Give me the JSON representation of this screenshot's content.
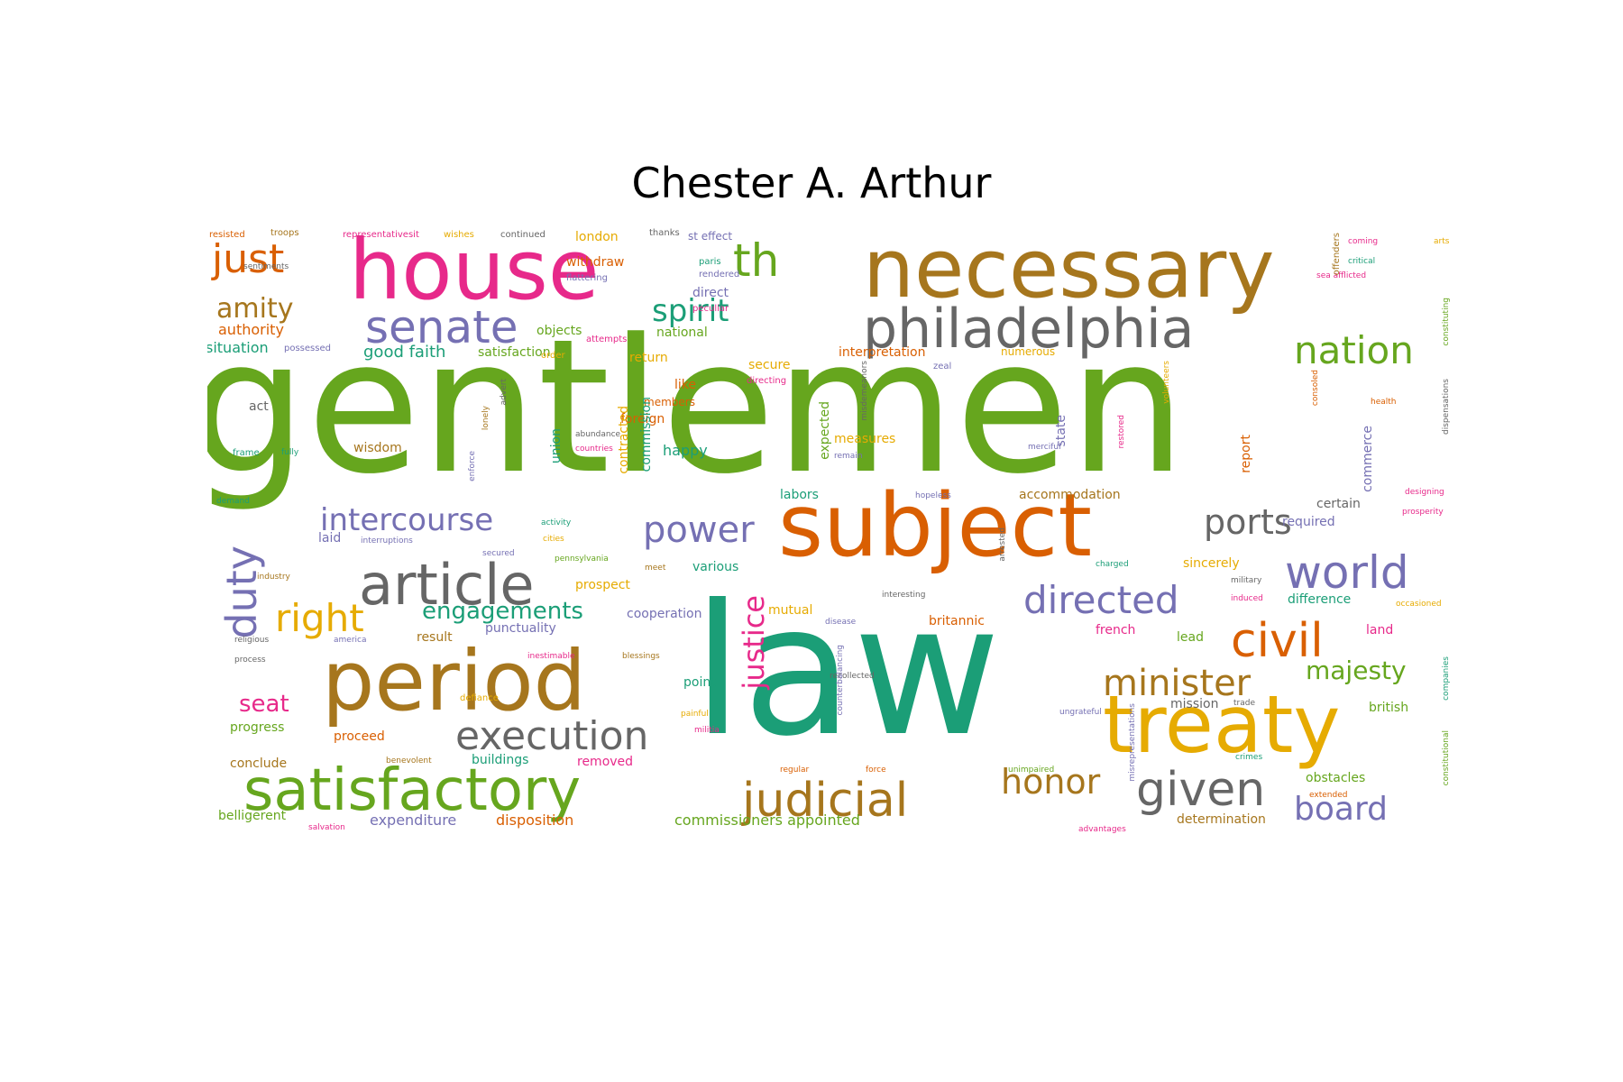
{
  "title": "Chester A. Arthur",
  "words": {
    "gentlemen": {
      "text": "gentlemen",
      "color": "#66a61e"
    },
    "law": {
      "text": "law",
      "color": "#1b9e77"
    },
    "necessary": {
      "text": "necessary",
      "color": "#a6761d"
    },
    "house": {
      "text": "house",
      "color": "#e7298a"
    },
    "subject": {
      "text": "subject",
      "color": "#d95f02"
    },
    "treaty": {
      "text": "treaty",
      "color": "#e6ab02"
    },
    "period": {
      "text": "period",
      "color": "#a6761d"
    },
    "philadelphia": {
      "text": "philadelphia",
      "color": "#666666"
    },
    "satisfactory": {
      "text": "satisfactory",
      "color": "#66a61e"
    },
    "article": {
      "text": "article",
      "color": "#666666"
    },
    "judicial": {
      "text": "judicial",
      "color": "#a6761d"
    },
    "senate": {
      "text": "senate",
      "color": "#7570b3"
    },
    "world": {
      "text": "world",
      "color": "#7570b3"
    },
    "directed": {
      "text": "directed",
      "color": "#7570b3"
    },
    "civil": {
      "text": "civil",
      "color": "#d95f02"
    },
    "given": {
      "text": "given",
      "color": "#666666"
    },
    "execution": {
      "text": "execution",
      "color": "#666666"
    },
    "minister": {
      "text": "minister",
      "color": "#a6761d"
    },
    "nation": {
      "text": "nation",
      "color": "#66a61e"
    },
    "th": {
      "text": "th",
      "color": "#66a61e"
    },
    "just": {
      "text": "just",
      "color": "#d95f02"
    },
    "duty": {
      "text": "duty",
      "color": "#7570b3"
    },
    "honor": {
      "text": "honor",
      "color": "#a6761d"
    },
    "power": {
      "text": "power",
      "color": "#7570b3"
    },
    "ports": {
      "text": "ports",
      "color": "#666666"
    },
    "right": {
      "text": "right",
      "color": "#e6ab02"
    },
    "board": {
      "text": "board",
      "color": "#7570b3"
    },
    "intercourse": {
      "text": "intercourse",
      "color": "#7570b3"
    },
    "justice": {
      "text": "justice",
      "color": "#e7298a"
    },
    "spirit": {
      "text": "spirit",
      "color": "#1b9e77"
    },
    "amity": {
      "text": "amity",
      "color": "#a6761d"
    },
    "majesty": {
      "text": "majesty",
      "color": "#66a61e"
    },
    "engagements": {
      "text": "engagements",
      "color": "#1b9e77"
    },
    "seat": {
      "text": "seat",
      "color": "#e7298a"
    },
    "small": [
      {
        "text": "resisted",
        "color": "#d95f02"
      },
      {
        "text": "troops",
        "color": "#a6761d"
      },
      {
        "text": "representativesit",
        "color": "#e7298a"
      },
      {
        "text": "wishes",
        "color": "#e6ab02"
      },
      {
        "text": "continued",
        "color": "#666666"
      },
      {
        "text": "london",
        "color": "#e6ab02"
      },
      {
        "text": "thanks",
        "color": "#666666"
      },
      {
        "text": "st effect",
        "color": "#7570b3"
      },
      {
        "text": "sentiments",
        "color": "#666666"
      },
      {
        "text": "authority",
        "color": "#d95f02"
      },
      {
        "text": "situation",
        "color": "#1b9e77"
      },
      {
        "text": "possessed",
        "color": "#7570b3"
      },
      {
        "text": "good faith",
        "color": "#1b9e77"
      },
      {
        "text": "satisfaction",
        "color": "#66a61e"
      },
      {
        "text": "objects",
        "color": "#66a61e"
      },
      {
        "text": "attempts",
        "color": "#e7298a"
      },
      {
        "text": "national",
        "color": "#66a61e"
      },
      {
        "text": "withdraw",
        "color": "#d95f02"
      },
      {
        "text": "flattering",
        "color": "#7570b3"
      },
      {
        "text": "direct",
        "color": "#7570b3"
      },
      {
        "text": "peculiar",
        "color": "#e7298a"
      },
      {
        "text": "paris",
        "color": "#1b9e77"
      },
      {
        "text": "rendered",
        "color": "#7570b3"
      },
      {
        "text": "return",
        "color": "#e6ab02"
      },
      {
        "text": "order",
        "color": "#e6ab02"
      },
      {
        "text": "secure",
        "color": "#e6ab02"
      },
      {
        "text": "interpretation",
        "color": "#d95f02"
      },
      {
        "text": "numerous",
        "color": "#e6ab02"
      },
      {
        "text": "zeal",
        "color": "#7570b3"
      },
      {
        "text": "like",
        "color": "#d95f02"
      },
      {
        "text": "directing",
        "color": "#e7298a"
      },
      {
        "text": "act",
        "color": "#666666"
      },
      {
        "text": "members",
        "color": "#d95f02"
      },
      {
        "text": "foreign",
        "color": "#d95f02"
      },
      {
        "text": "wisdom",
        "color": "#a6761d"
      },
      {
        "text": "happy",
        "color": "#1b9e77"
      },
      {
        "text": "abundance",
        "color": "#666666"
      },
      {
        "text": "countries",
        "color": "#e7298a"
      },
      {
        "text": "measures",
        "color": "#e6ab02"
      },
      {
        "text": "remain",
        "color": "#7570b3"
      },
      {
        "text": "merciful",
        "color": "#7570b3"
      },
      {
        "text": "frame",
        "color": "#1b9e77"
      },
      {
        "text": "fully",
        "color": "#1b9e77"
      },
      {
        "text": "demand",
        "color": "#1b9e77"
      },
      {
        "text": "laid",
        "color": "#7570b3"
      },
      {
        "text": "interruptions",
        "color": "#7570b3"
      },
      {
        "text": "activity",
        "color": "#1b9e77"
      },
      {
        "text": "cities",
        "color": "#e6ab02"
      },
      {
        "text": "labors",
        "color": "#1b9e77"
      },
      {
        "text": "hopeless",
        "color": "#7570b3"
      },
      {
        "text": "accommodation",
        "color": "#a6761d"
      },
      {
        "text": "certain",
        "color": "#666666"
      },
      {
        "text": "required",
        "color": "#7570b3"
      },
      {
        "text": "designing",
        "color": "#e7298a"
      },
      {
        "text": "prosperity",
        "color": "#e7298a"
      },
      {
        "text": "industry",
        "color": "#a6761d"
      },
      {
        "text": "secured",
        "color": "#7570b3"
      },
      {
        "text": "pennsylvania",
        "color": "#66a61e"
      },
      {
        "text": "meet",
        "color": "#a6761d"
      },
      {
        "text": "various",
        "color": "#1b9e77"
      },
      {
        "text": "sincerely",
        "color": "#e6ab02"
      },
      {
        "text": "military",
        "color": "#666666"
      },
      {
        "text": "prospect",
        "color": "#e6ab02"
      },
      {
        "text": "interesting",
        "color": "#666666"
      },
      {
        "text": "induced",
        "color": "#e7298a"
      },
      {
        "text": "difference",
        "color": "#1b9e77"
      },
      {
        "text": "occasioned",
        "color": "#e6ab02"
      },
      {
        "text": "religious",
        "color": "#666666"
      },
      {
        "text": "america",
        "color": "#7570b3"
      },
      {
        "text": "result",
        "color": "#a6761d"
      },
      {
        "text": "punctuality",
        "color": "#7570b3"
      },
      {
        "text": "cooperation",
        "color": "#7570b3"
      },
      {
        "text": "mutual",
        "color": "#e6ab02"
      },
      {
        "text": "disease",
        "color": "#7570b3"
      },
      {
        "text": "britannic",
        "color": "#d95f02"
      },
      {
        "text": "french",
        "color": "#e7298a"
      },
      {
        "text": "lead",
        "color": "#66a61e"
      },
      {
        "text": "land",
        "color": "#e7298a"
      },
      {
        "text": "process",
        "color": "#666666"
      },
      {
        "text": "inestimable",
        "color": "#e7298a"
      },
      {
        "text": "blessings",
        "color": "#a6761d"
      },
      {
        "text": "recollected",
        "color": "#666666"
      },
      {
        "text": "point",
        "color": "#1b9e77"
      },
      {
        "text": "defiance",
        "color": "#e6ab02"
      },
      {
        "text": "painful",
        "color": "#e6ab02"
      },
      {
        "text": "militia",
        "color": "#e7298a"
      },
      {
        "text": "mission",
        "color": "#666666"
      },
      {
        "text": "trade",
        "color": "#666666"
      },
      {
        "text": "ungrateful",
        "color": "#7570b3"
      },
      {
        "text": "british",
        "color": "#66a61e"
      },
      {
        "text": "progress",
        "color": "#66a61e"
      },
      {
        "text": "proceed",
        "color": "#d95f02"
      },
      {
        "text": "conclude",
        "color": "#a6761d"
      },
      {
        "text": "benevolent",
        "color": "#a6761d"
      },
      {
        "text": "buildings",
        "color": "#1b9e77"
      },
      {
        "text": "removed",
        "color": "#e7298a"
      },
      {
        "text": "regular",
        "color": "#d95f02"
      },
      {
        "text": "force",
        "color": "#d95f02"
      },
      {
        "text": "unimpaired",
        "color": "#66a61e"
      },
      {
        "text": "crimes",
        "color": "#1b9e77"
      },
      {
        "text": "obstacles",
        "color": "#66a61e"
      },
      {
        "text": "extended",
        "color": "#d95f02"
      },
      {
        "text": "belligerent",
        "color": "#66a61e"
      },
      {
        "text": "salvation",
        "color": "#e7298a"
      },
      {
        "text": "expenditure",
        "color": "#7570b3"
      },
      {
        "text": "disposition",
        "color": "#d95f02"
      },
      {
        "text": "commissioners appointed",
        "color": "#66a61e"
      },
      {
        "text": "advantages",
        "color": "#e7298a"
      },
      {
        "text": "determination",
        "color": "#a6761d"
      },
      {
        "text": "coming",
        "color": "#e7298a"
      },
      {
        "text": "arts",
        "color": "#e6ab02"
      },
      {
        "text": "critical",
        "color": "#1b9e77"
      },
      {
        "text": "sea afflicted",
        "color": "#e7298a"
      },
      {
        "text": "health",
        "color": "#d95f02"
      },
      {
        "text": "charged",
        "color": "#1b9e77"
      }
    ],
    "vertical": [
      {
        "text": "commission",
        "color": "#1b9e77"
      },
      {
        "text": "contracted",
        "color": "#e6ab02"
      },
      {
        "text": "union",
        "color": "#1b9e77"
      },
      {
        "text": "expected",
        "color": "#66a61e"
      },
      {
        "text": "state",
        "color": "#7570b3"
      },
      {
        "text": "commerce",
        "color": "#7570b3"
      },
      {
        "text": "report",
        "color": "#d95f02"
      },
      {
        "text": "offenders",
        "color": "#a6761d"
      },
      {
        "text": "volunteers",
        "color": "#e6ab02"
      },
      {
        "text": "misrepresentations",
        "color": "#7570b3"
      },
      {
        "text": "misdemeanors",
        "color": "#666666"
      },
      {
        "text": "constituting",
        "color": "#66a61e"
      },
      {
        "text": "dispensations",
        "color": "#666666"
      },
      {
        "text": "submission",
        "color": "#1b9e77"
      },
      {
        "text": "presidentsweet",
        "color": "#e7298a"
      },
      {
        "text": "enforce",
        "color": "#7570b3"
      },
      {
        "text": "lonely",
        "color": "#a6761d"
      },
      {
        "text": "advert",
        "color": "#666666"
      },
      {
        "text": "arrested",
        "color": "#666666"
      },
      {
        "text": "restored",
        "color": "#e7298a"
      },
      {
        "text": "companies",
        "color": "#1b9e77"
      },
      {
        "text": "consoled",
        "color": "#d95f02"
      },
      {
        "text": "counterbalancing",
        "color": "#7570b3"
      },
      {
        "text": "constitutional",
        "color": "#66a61e"
      }
    ]
  }
}
